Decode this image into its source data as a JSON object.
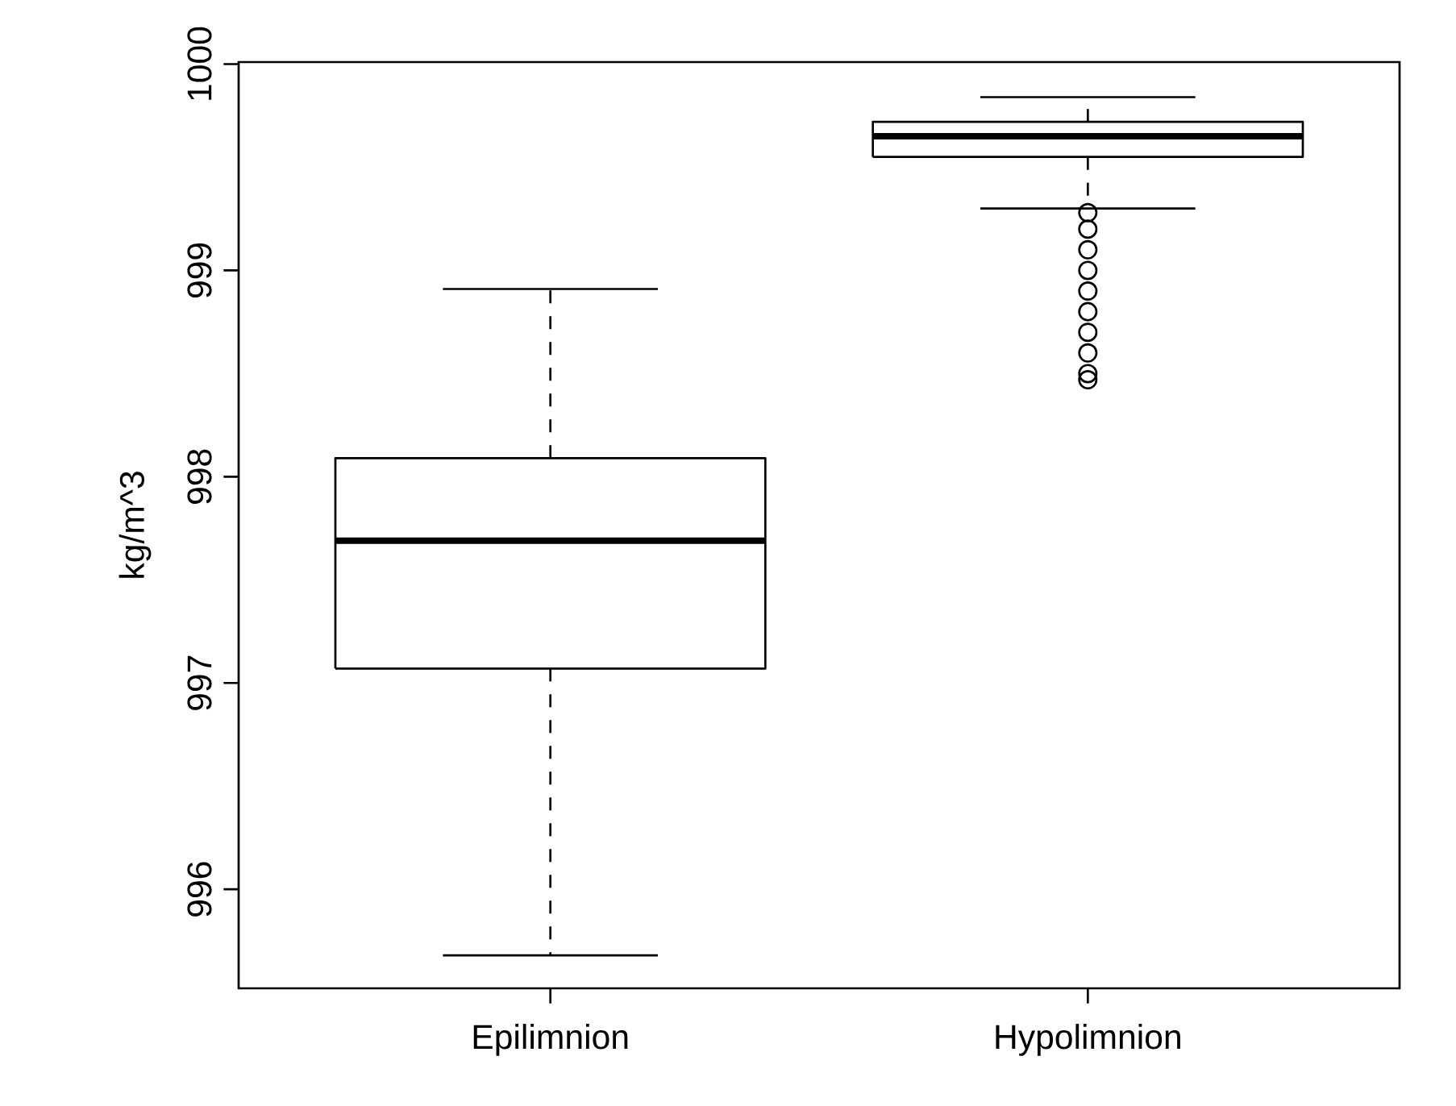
{
  "chart_data": {
    "type": "box",
    "categories": [
      "Epilimnion",
      "Hypolimnion"
    ],
    "ylabel": "kg/m^3",
    "ylim": [
      995.52,
      1000.01
    ],
    "yticks": [
      996,
      997,
      998,
      999,
      1000
    ],
    "boxes": [
      {
        "low": 995.68,
        "q1": 997.07,
        "median": 997.69,
        "q3": 998.09,
        "high": 998.91
      },
      {
        "low": 999.3,
        "q1": 999.55,
        "median": 999.65,
        "q3": 999.72,
        "high": 999.84,
        "outliers": [
          999.28,
          999.2,
          999.1,
          999.0,
          998.9,
          998.8,
          998.7,
          998.6,
          998.5,
          998.47
        ]
      }
    ]
  }
}
